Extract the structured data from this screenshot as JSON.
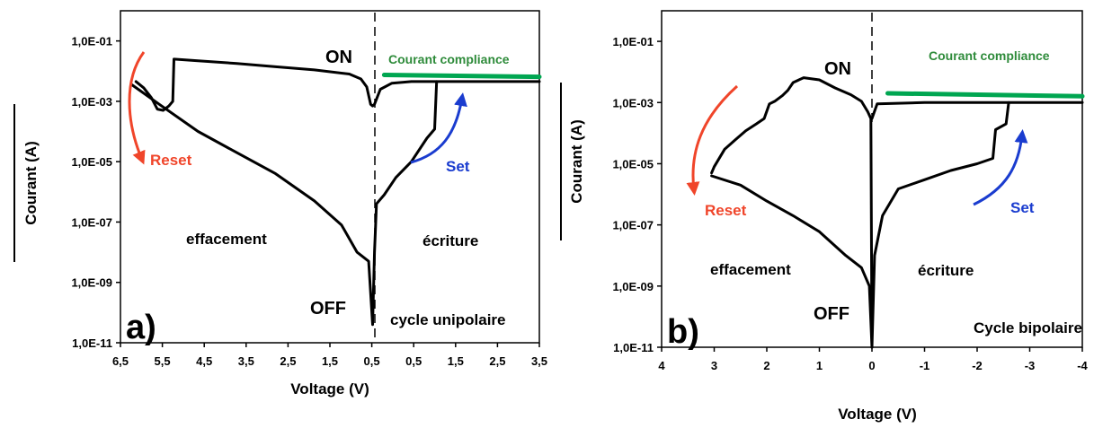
{
  "chart_data": [
    {
      "type": "line",
      "panel_label": "a)",
      "xlabel": "Voltage (V)",
      "ylabel": "Courant (A)",
      "x_ticks": [
        "6,5",
        "5,5",
        "4,5",
        "3,5",
        "2,5",
        "1,5",
        "0,5",
        "0,5",
        "1,5",
        "2,5",
        "3,5"
      ],
      "y_ticks": [
        "1,0E-11",
        "1,0E-09",
        "1,0E-07",
        "1,0E-05",
        "1,0E-03",
        "1,0E-01"
      ],
      "ylim": [
        1e-11,
        1
      ],
      "y_scale": "log",
      "xlim": [
        -6.5,
        4.3
      ],
      "annotations": {
        "on": "ON",
        "off": "OFF",
        "compliance": "Courant compliance",
        "reset": "Reset",
        "set": "Set",
        "left_region": "effacement",
        "right_region": "écriture",
        "cycle": "cycle unipolaire"
      },
      "series": [
        {
          "color": "#000000",
          "points": [
            [
              -6.1,
              0.0045
            ],
            [
              -5.9,
              0.0028
            ],
            [
              -5.7,
              0.0013
            ],
            [
              -5.55,
              0.00055
            ],
            [
              -5.4,
              0.0005
            ],
            [
              -5.25,
              0.0007
            ],
            [
              -5.15,
              0.001
            ],
            [
              -5.12,
              0.025
            ],
            [
              -4.5,
              0.022
            ],
            [
              -3.5,
              0.018
            ],
            [
              -2.5,
              0.014
            ],
            [
              -1.5,
              0.011
            ],
            [
              -0.6,
              0.008
            ],
            [
              -0.3,
              0.0055
            ],
            [
              -0.15,
              0.003
            ],
            [
              -0.05,
              0.0008
            ],
            [
              0,
              0.0007
            ],
            [
              0.05,
              0.0008
            ],
            [
              0.2,
              0.0025
            ],
            [
              0.5,
              0.004
            ],
            [
              1.0,
              0.0045
            ],
            [
              1.5,
              0.0045
            ],
            [
              2.5,
              0.0045
            ],
            [
              3.5,
              0.0045
            ],
            [
              4.3,
              0.0045
            ]
          ]
        },
        {
          "color": "#000000",
          "points": [
            [
              -6.2,
              0.0035
            ],
            [
              -5.5,
              0.0008
            ],
            [
              -4.5,
              0.0001
            ],
            [
              -3.5,
              2e-05
            ],
            [
              -2.5,
              4e-06
            ],
            [
              -1.5,
              5e-07
            ],
            [
              -0.8,
              8e-08
            ],
            [
              -0.4,
              1e-08
            ],
            [
              -0.1,
              5e-09
            ],
            [
              0,
              4e-11
            ],
            [
              0.05,
              1e-08
            ],
            [
              0.1,
              4e-07
            ],
            [
              0.3,
              8e-07
            ],
            [
              0.6,
              3e-06
            ],
            [
              1.0,
              1e-05
            ],
            [
              1.4,
              6e-05
            ],
            [
              1.6,
              0.00012
            ],
            [
              1.65,
              0.0045
            ]
          ]
        },
        {
          "color": "#00a651",
          "points": [
            [
              0.3,
              0.0075
            ],
            [
              4.3,
              0.0065
            ]
          ]
        }
      ]
    },
    {
      "type": "line",
      "panel_label": "b)",
      "xlabel": "Voltage (V)",
      "ylabel": "Courant (A)",
      "x_ticks": [
        "4",
        "3",
        "2",
        "1",
        "0",
        "-1",
        "-2",
        "-3",
        "-4"
      ],
      "y_ticks": [
        "1,0E-11",
        "1,0E-09",
        "1,0E-07",
        "1,0E-05",
        "1,0E-03",
        "1,0E-01"
      ],
      "ylim": [
        1e-11,
        1
      ],
      "y_scale": "log",
      "xlim": [
        4,
        -4
      ],
      "annotations": {
        "on": "ON",
        "off": "OFF",
        "compliance": "Courant compliance",
        "reset": "Reset",
        "set": "Set",
        "left_region": "effacement",
        "right_region": "écriture",
        "cycle": "Cycle bipolaire"
      },
      "series": [
        {
          "color": "#000000",
          "points": [
            [
              3.05,
              5e-06
            ],
            [
              3.0,
              8e-06
            ],
            [
              2.8,
              3e-05
            ],
            [
              2.6,
              6e-05
            ],
            [
              2.4,
              0.00012
            ],
            [
              2.2,
              0.0002
            ],
            [
              2.05,
              0.0003
            ],
            [
              1.95,
              0.0009
            ],
            [
              1.85,
              0.0011
            ],
            [
              1.7,
              0.0017
            ],
            [
              1.6,
              0.0025
            ],
            [
              1.5,
              0.0045
            ],
            [
              1.3,
              0.0065
            ],
            [
              1.0,
              0.0055
            ],
            [
              0.7,
              0.003
            ],
            [
              0.4,
              0.0018
            ],
            [
              0.2,
              0.0011
            ],
            [
              0.08,
              0.0005
            ],
            [
              0.02,
              0.0003
            ],
            [
              0,
              1e-11
            ]
          ]
        },
        {
          "color": "#000000",
          "points": [
            [
              3.05,
              4e-06
            ],
            [
              2.5,
              2e-06
            ],
            [
              2.0,
              6e-07
            ],
            [
              1.5,
              2e-07
            ],
            [
              1.0,
              6e-08
            ],
            [
              0.5,
              1e-08
            ],
            [
              0.2,
              4e-09
            ],
            [
              0.05,
              1e-09
            ],
            [
              0,
              1e-11
            ],
            [
              -0.05,
              1e-08
            ],
            [
              -0.2,
              2e-07
            ],
            [
              -0.5,
              1.5e-06
            ],
            [
              -1.0,
              3e-06
            ],
            [
              -1.5,
              6e-06
            ],
            [
              -2.0,
              1e-05
            ],
            [
              -2.3,
              1.5e-05
            ],
            [
              -2.35,
              0.00013
            ],
            [
              -2.55,
              0.0002
            ],
            [
              -2.6,
              0.001
            ]
          ]
        },
        {
          "color": "#000000",
          "points": [
            [
              0,
              0.0003
            ],
            [
              -0.1,
              0.0009
            ],
            [
              -1.0,
              0.001
            ],
            [
              -2.0,
              0.001
            ],
            [
              -3.0,
              0.001
            ],
            [
              -4.0,
              0.001
            ]
          ]
        },
        {
          "color": "#00a651",
          "points": [
            [
              -0.3,
              0.002
            ],
            [
              -4.0,
              0.0016
            ]
          ]
        }
      ]
    }
  ]
}
